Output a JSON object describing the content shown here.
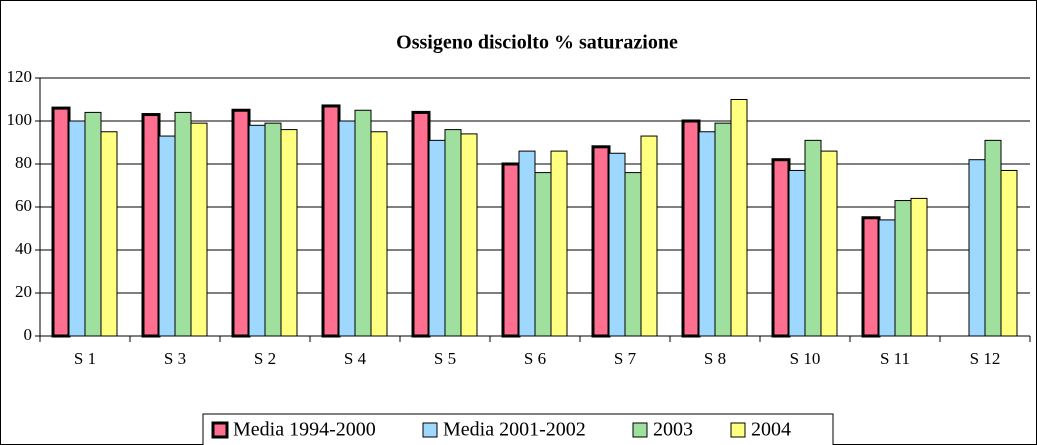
{
  "chart_data": {
    "type": "bar",
    "title": "Ossigeno disciolto % saturazione",
    "categories": [
      "S 1",
      "S 3",
      "S 2",
      "S 4",
      "S 5",
      "S 6",
      "S 7",
      "S 8",
      "S 10",
      "S 11",
      "S 12"
    ],
    "series": [
      {
        "name": "Media 1994-2000",
        "color": "#ff6f8f",
        "values": [
          106,
          103,
          105,
          107,
          104,
          80,
          88,
          100,
          82,
          55,
          null
        ]
      },
      {
        "name": "Media 2001-2002",
        "color": "#9fd8ff",
        "values": [
          100,
          93,
          98,
          100,
          91,
          86,
          85,
          95,
          77,
          54,
          82
        ]
      },
      {
        "name": "2003",
        "color": "#9fe09f",
        "values": [
          104,
          104,
          99,
          105,
          96,
          76,
          76,
          99,
          91,
          63,
          91
        ]
      },
      {
        "name": "2004",
        "color": "#ffff80",
        "values": [
          95,
          99,
          96,
          95,
          94,
          86,
          93,
          110,
          86,
          64,
          77
        ]
      }
    ],
    "ylim": [
      0,
      120
    ],
    "yticks": [
      0,
      20,
      40,
      60,
      80,
      100,
      120
    ],
    "grid": true,
    "legend": "bottom"
  }
}
